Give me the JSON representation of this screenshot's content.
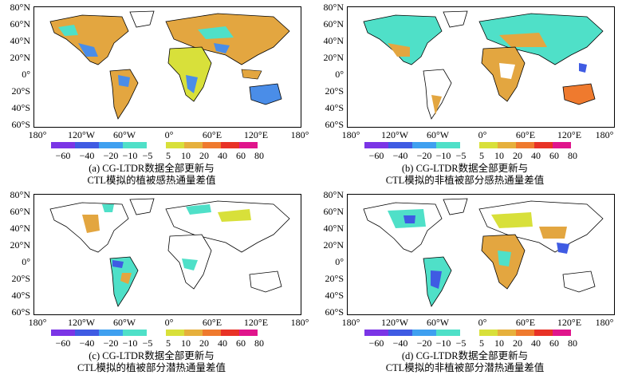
{
  "lat_labels": [
    "80°N",
    "60°N",
    "40°N",
    "20°N",
    "0°",
    "20°S",
    "40°S",
    "60°S"
  ],
  "lon_labels": [
    "180°",
    "120°W",
    "60°W",
    "0°",
    "60°E",
    "120°E",
    "180°"
  ],
  "colorbar": {
    "neg_labels": [
      "−60",
      "−40",
      "−20",
      "−10",
      "−5"
    ],
    "pos_labels": [
      "5",
      "10",
      "20",
      "40",
      "60",
      "80"
    ],
    "neg_colors": [
      "#7b35e6",
      "#3f5be3",
      "#3fa0f0",
      "#4fe0c8"
    ],
    "pos_colors": [
      "#d8e03a",
      "#e6b03c",
      "#ef7a2e",
      "#e83226",
      "#e0158c"
    ]
  },
  "colors": {
    "land_pos": "#e3a640",
    "land_neg": "#4a8de8",
    "land_cyan": "#4fe0c8",
    "coast": "#000000"
  },
  "panels": [
    {
      "caption_line1": "(a) CG-LTDR数据全部更新与",
      "caption_line2": "CTL模拟的植被感热通量差值"
    },
    {
      "caption_line1": "(b) CG-LTDR数据全部更新与",
      "caption_line2": "CTL模拟的非植被部分感热通量差值"
    },
    {
      "caption_line1": "(c) CG-LTDR数据全部更新与",
      "caption_line2": "CTL模拟的植被部分潜热通量差值"
    },
    {
      "caption_line1": "(d) CG-LTDR数据全部更新与",
      "caption_line2": "CTL模拟的非植被部分潜热通量差值"
    }
  ]
}
